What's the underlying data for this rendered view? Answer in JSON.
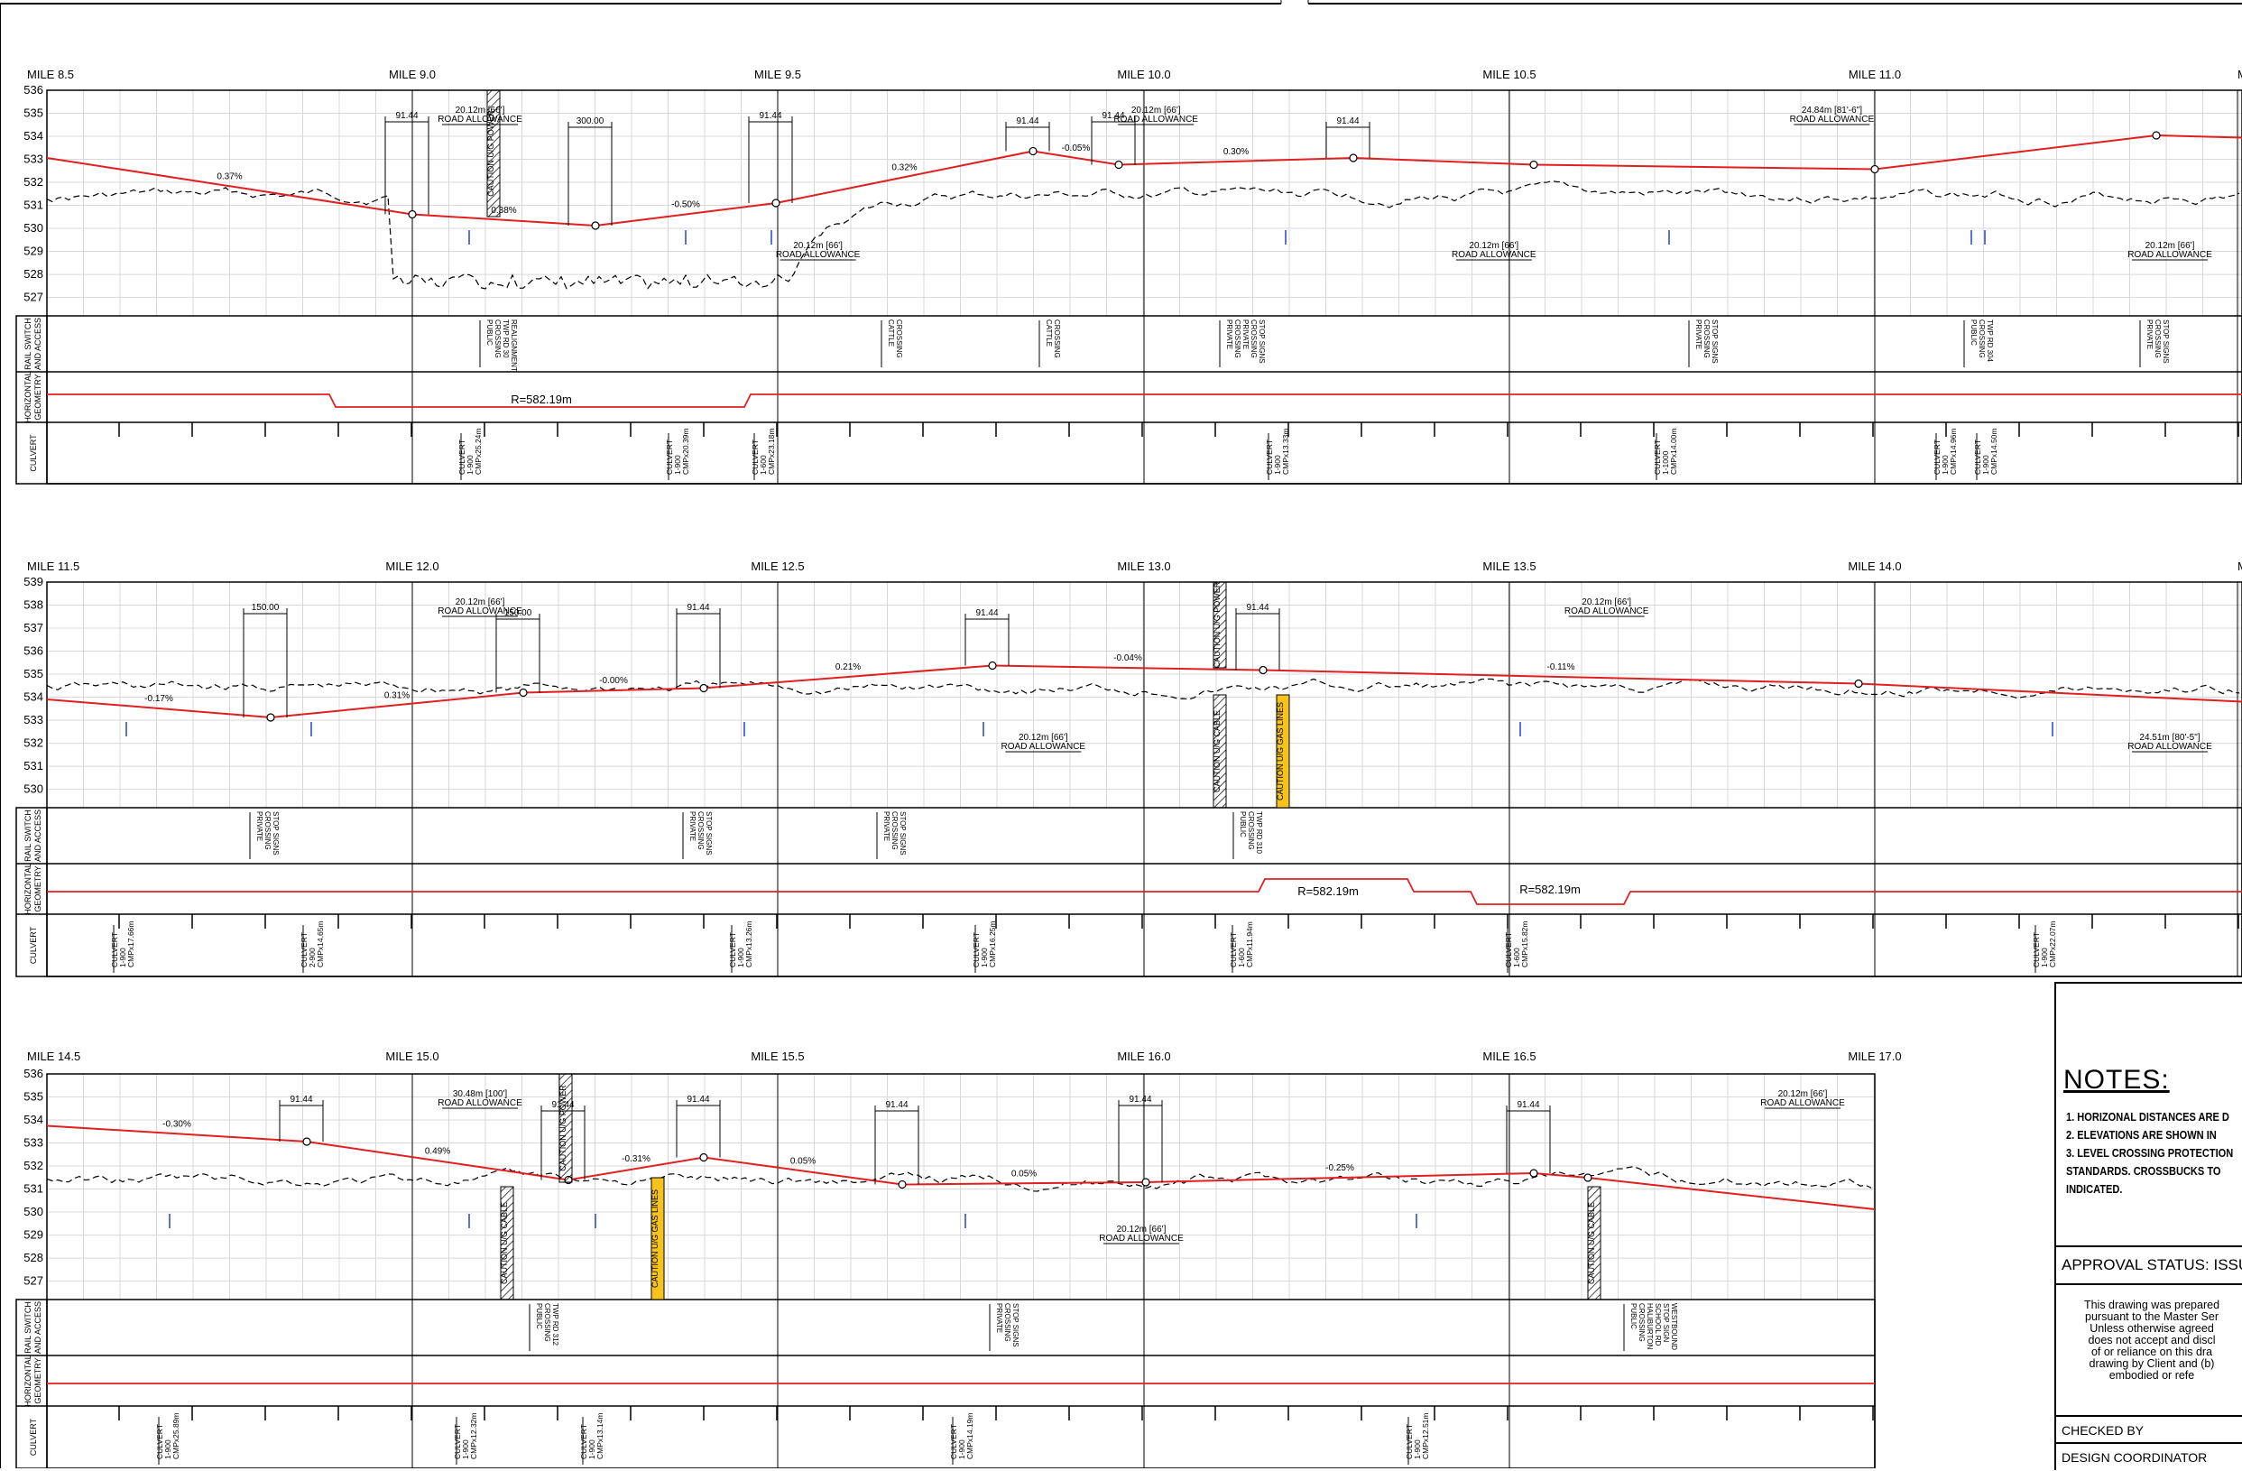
{
  "sheet": {
    "rows": [
      {
        "id": "row1",
        "miles": [
          "MILE 8.5",
          "MILE 9.0",
          "MILE 9.5",
          "MILE 10.0",
          "MILE 10.5",
          "MILE 11.0",
          "MILE"
        ],
        "elevations": [
          "536",
          "535",
          "534",
          "533",
          "532",
          "531",
          "530",
          "529",
          "528",
          "527"
        ],
        "profile_y": [
          533.0,
          532.6,
          532.1,
          531.6,
          530.75,
          530.2,
          530.05,
          530.35,
          531.0,
          531.7,
          532.4,
          533.15,
          533.1,
          532.7,
          532.6,
          532.7,
          532.9,
          533.0,
          533.0,
          532.85,
          532.7,
          532.6,
          532.5,
          533.05,
          533.55,
          533.8,
          533.6
        ],
        "grades": [
          {
            "text": "0.37%",
            "alt": "-0.37%"
          },
          {
            "text": "0.38%"
          },
          {
            "text": "-0.50%"
          },
          {
            "text": "0.32%"
          },
          {
            "text": "-0.05%"
          },
          {
            "text": "0.30%"
          }
        ],
        "dims": [
          "91.44",
          "300.00",
          "91.44",
          "91.44",
          "91.44",
          "91.44"
        ],
        "allowances": [
          "20.12m [66']",
          "ROAD ALLOWANCE",
          "20.12m [66']",
          "ROAD ALLOWANCE",
          "20.12m [66']",
          "ROAD ALLOWANCE",
          "20.12m [66']",
          "ROAD ALLOWANCE",
          "24.84m [81'-6\"]",
          "ROAD ALLOWANCE",
          "20.12m [66']",
          "ROAD ALLOWANCE"
        ],
        "caution": "CAUTION U/G POWER",
        "access": [
          "PUBLIC",
          "CROSSING",
          "TWP RD 30",
          "REALIGNMENT",
          "CATTLE",
          "CROSSING",
          "CATTLE",
          "CROSSING",
          "PRIVATE",
          "CROSSING",
          "PRIVATE",
          "CROSSING",
          "STOP SIGNS",
          "PRIVATE",
          "CROSSING",
          "STOP SIGNS",
          "PUBLIC",
          "CROSSING",
          "TWP RD 304",
          "PRIVATE",
          "CROSSING",
          "STOP SIGNS"
        ],
        "curve": "R=582.19m",
        "culverts": [
          "CULVERT",
          "1-900",
          "CMPx25.24m",
          "CULVERT",
          "1-900",
          "CMPx20.39m",
          "CULVERT",
          "1-600",
          "CMPx23.18m",
          "CULVERT",
          "1-900",
          "CMPx13.33m",
          "CULVERT",
          "1-1000",
          "CMPx14.00m",
          "CULVERT",
          "1-900",
          "CMPx14.96m",
          "CULVERT",
          "1-900",
          "CMPx14.50m"
        ]
      },
      {
        "id": "row2",
        "miles": [
          "MILE 11.5",
          "MILE 12.0",
          "MILE 12.5",
          "MILE 13.0",
          "MILE 13.5",
          "MILE 14.0",
          "MILE"
        ],
        "elevations": [
          "539",
          "538",
          "537",
          "536",
          "535",
          "534",
          "533",
          "532",
          "531",
          "530"
        ],
        "grades": [
          {
            "text": "-0.17%"
          },
          {
            "text": "0.31%"
          },
          {
            "text": "-0.00%"
          },
          {
            "text": "0.21%"
          },
          {
            "text": "-0.04%"
          },
          {
            "text": "-0.11%"
          }
        ],
        "dims": [
          "150.00",
          "150.00",
          "91.44",
          "91.44",
          "91.44"
        ],
        "allowances": [
          "20.12m [66']",
          "ROAD ALLOWANCE",
          "20.12m [66']",
          "ROAD ALLOWANCE",
          "20.12m [66']",
          "ROAD ALLOWANCE",
          "24.51m [80'-5\"]",
          "ROAD ALLOWANCE"
        ],
        "cautions": [
          "CAUTION U/G POWER",
          "CAUTION U/G CABLE",
          "CAUTION U/G GAS LINES"
        ],
        "access": [
          "PRIVATE",
          "CROSSING",
          "STOP SIGNS",
          "PRIVATE",
          "CROSSING",
          "STOP SIGNS",
          "PRIVATE",
          "CROSSING",
          "STOP SIGNS",
          "PUBLIC",
          "CROSSING",
          "TWP RD 310"
        ],
        "curves": [
          "R=582.19m",
          "R=582.19m"
        ],
        "culverts": [
          "CULVERT",
          "1-900",
          "CMPx17.66m",
          "CULVERT",
          "2-900",
          "CMPx14.65m",
          "CULVERT",
          "1-900",
          "CMPx13.26m",
          "CULVERT",
          "1-900",
          "CMPx16.25m",
          "CULVERT",
          "1-600",
          "CMPx11.94m",
          "CULVERT",
          "1-600",
          "CMPx15.82m",
          "CULVERT",
          "1-900",
          "CMPx22.07m"
        ]
      },
      {
        "id": "row3",
        "miles": [
          "MILE 14.5",
          "MILE 15.0",
          "MILE 15.5",
          "MILE 16.0",
          "MILE 16.5",
          "MILE 17.0"
        ],
        "elevations": [
          "536",
          "535",
          "534",
          "533",
          "532",
          "531",
          "530",
          "529",
          "528",
          "527"
        ],
        "grades": [
          {
            "text": "-0.30%"
          },
          {
            "text": "0.49%"
          },
          {
            "text": "-0.31%"
          },
          {
            "text": "0.05%"
          },
          {
            "text": "0.05%"
          },
          {
            "text": "-0.25%"
          }
        ],
        "dims": [
          "91.44",
          "91.44",
          "91.44",
          "91.44",
          "91.44",
          "91.44"
        ],
        "allowances": [
          "30.48m [100']",
          "ROAD ALLOWANCE",
          "20.12m [66']",
          "ROAD ALLOWANCE",
          "20.12m [66']",
          "ROAD ALLOWANCE"
        ],
        "cautions": [
          "CAUTION U/G POWER",
          "CAUTION U/G CABLE",
          "CAUTION U/G GAS LINES",
          "CAUTION U/G CABLE"
        ],
        "access": [
          "PUBLIC",
          "CROSSING",
          "TWP RD 312",
          "PRIVATE",
          "CROSSING",
          "STOP SIGNS",
          "PUBLIC",
          "CROSSING",
          "HALIBURTON",
          "SCHOOL RD",
          "STOP SIGN",
          "WESTBOUND"
        ],
        "culverts": [
          "CULVERT",
          "1-900",
          "CMPx25.89m",
          "CULVERT",
          "1-900",
          "CMPx12.32m",
          "CULVERT",
          "1-900",
          "CMPx13.14m",
          "CULVERT",
          "1-900",
          "CMPx14.19m",
          "CULVERT",
          "1-900",
          "CMPx12.51m"
        ]
      }
    ],
    "band_labels": {
      "access": [
        "RAIL SWITCH",
        "AND ACCESS"
      ],
      "geometry": [
        "HORIZONTAL",
        "GEOMETRY"
      ],
      "culvert": "CULVERT"
    }
  },
  "notes": {
    "title": "NOTES:",
    "items": [
      "1.  HORIZONAL DISTANCES ARE D",
      "2.  ELEVATIONS ARE SHOWN IN",
      "3.  LEVEL CROSSING PROTECTION",
      "     STANDARDS. CROSSBUCKS TO",
      "     INDICATED."
    ]
  },
  "approval": "APPROVAL STATUS: ISSU",
  "disclaimer": "This drawing was prepared\npursuant to the Master Ser\nUnless otherwise agreed\ndoes not accept and discl\nof or reliance on this dra\ndrawing by Client and (b)\nembodied or refe",
  "signoff": {
    "checked_by": "CHECKED BY",
    "design_coordinator": "DESIGN COORDINATOR"
  },
  "colors": {
    "profile": "#e02020",
    "ground": "#000000",
    "grid": "#d8d8d8",
    "caution_fill": "#f5c31c",
    "marker": "#2244cc"
  }
}
